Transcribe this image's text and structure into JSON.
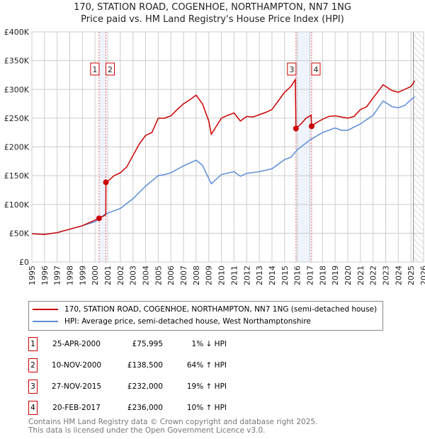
{
  "title_line1": "170, STATION ROAD, COGENHOE, NORTHAMPTON, NN7 1NG",
  "title_line2": "Price paid vs. HM Land Registry's House Price Index (HPI)",
  "chart_data": {
    "type": "line",
    "title": "170, STATION ROAD, COGENHOE, NORTHAMPTON, NN7 1NG — Price paid vs. HM Land Registry's House Price Index (HPI)",
    "xlim": [
      1995,
      2026
    ],
    "ylim": [
      0,
      400000
    ],
    "x_ticks": [
      "1995",
      "1996",
      "1997",
      "1998",
      "1999",
      "2000",
      "2001",
      "2002",
      "2003",
      "2004",
      "2005",
      "2006",
      "2007",
      "2008",
      "2009",
      "2010",
      "2011",
      "2012",
      "2013",
      "2014",
      "2015",
      "2016",
      "2017",
      "2018",
      "2019",
      "2020",
      "2021",
      "2022",
      "2023",
      "2024",
      "2025",
      "2026"
    ],
    "y_ticks": [
      {
        "v": 0,
        "l": "£0"
      },
      {
        "v": 50000,
        "l": "£50K"
      },
      {
        "v": 100000,
        "l": "£100K"
      },
      {
        "v": 150000,
        "l": "£150K"
      },
      {
        "v": 200000,
        "l": "£200K"
      },
      {
        "v": 250000,
        "l": "£250K"
      },
      {
        "v": 300000,
        "l": "£300K"
      },
      {
        "v": 350000,
        "l": "£350K"
      },
      {
        "v": 400000,
        "l": "£400K"
      }
    ],
    "grid": true,
    "shaded_ranges": [
      [
        2000.32,
        2000.86
      ],
      [
        2015.9,
        2017.14
      ]
    ],
    "forecast_hatch_from": 2025.2,
    "series": [
      {
        "name": "170, STATION ROAD, COGENHOE, NORTHAMPTON, NN7 1NG (semi-detached house)",
        "color": "#cc0000",
        "points": [
          [
            1995,
            49
          ],
          [
            1996,
            48
          ],
          [
            1997,
            51
          ],
          [
            1998,
            57
          ],
          [
            1999,
            63
          ],
          [
            2000.32,
            76
          ],
          [
            2000.85,
            82
          ],
          [
            2000.86,
            138.5
          ],
          [
            2001,
            140
          ],
          [
            2001.5,
            150
          ],
          [
            2002,
            155
          ],
          [
            2002.5,
            165
          ],
          [
            2003,
            185
          ],
          [
            2003.5,
            205
          ],
          [
            2004,
            220
          ],
          [
            2004.5,
            225
          ],
          [
            2005,
            250
          ],
          [
            2005.5,
            250
          ],
          [
            2006,
            254
          ],
          [
            2006.5,
            265
          ],
          [
            2007,
            275
          ],
          [
            2007.5,
            282
          ],
          [
            2008,
            290
          ],
          [
            2008.5,
            275
          ],
          [
            2009,
            245
          ],
          [
            2009.2,
            222
          ],
          [
            2010,
            250
          ],
          [
            2010.5,
            255
          ],
          [
            2011,
            259
          ],
          [
            2011.5,
            245
          ],
          [
            2012,
            253
          ],
          [
            2012.5,
            252
          ],
          [
            2013,
            256
          ],
          [
            2013.5,
            260
          ],
          [
            2014,
            265
          ],
          [
            2014.5,
            280
          ],
          [
            2015,
            295
          ],
          [
            2015.5,
            305
          ],
          [
            2015.85,
            317
          ],
          [
            2015.9,
            232
          ],
          [
            2016.3,
            240
          ],
          [
            2016.7,
            250
          ],
          [
            2017.1,
            255
          ],
          [
            2017.14,
            236
          ],
          [
            2017.5,
            242
          ],
          [
            2018,
            248
          ],
          [
            2018.5,
            253
          ],
          [
            2019,
            254
          ],
          [
            2019.5,
            252
          ],
          [
            2020,
            250
          ],
          [
            2020.5,
            253
          ],
          [
            2021,
            265
          ],
          [
            2021.5,
            270
          ],
          [
            2022,
            285
          ],
          [
            2022.8,
            308
          ],
          [
            2023.5,
            298
          ],
          [
            2024,
            295
          ],
          [
            2024.5,
            300
          ],
          [
            2025,
            305
          ],
          [
            2025.3,
            315
          ]
        ]
      },
      {
        "name": "HPI: Average price, semi-detached house, West Northamptonshire",
        "color": "#5b8dd6",
        "points": [
          [
            1995,
            49
          ],
          [
            1996,
            48
          ],
          [
            1997,
            51
          ],
          [
            1998,
            57
          ],
          [
            1999,
            63
          ],
          [
            2000,
            70
          ],
          [
            2000.8,
            83
          ],
          [
            2001,
            85
          ],
          [
            2002,
            93
          ],
          [
            2003,
            110
          ],
          [
            2004,
            132
          ],
          [
            2005,
            150
          ],
          [
            2005.5,
            152
          ],
          [
            2006,
            155
          ],
          [
            2007,
            167
          ],
          [
            2008,
            177
          ],
          [
            2008.5,
            168
          ],
          [
            2009.2,
            136
          ],
          [
            2010,
            152
          ],
          [
            2011,
            157
          ],
          [
            2011.5,
            149
          ],
          [
            2012,
            154
          ],
          [
            2013,
            157
          ],
          [
            2014,
            162
          ],
          [
            2015,
            178
          ],
          [
            2015.5,
            182
          ],
          [
            2016,
            195
          ],
          [
            2017,
            212
          ],
          [
            2018,
            225
          ],
          [
            2019,
            233
          ],
          [
            2019.5,
            229
          ],
          [
            2020,
            229
          ],
          [
            2021,
            240
          ],
          [
            2022,
            255
          ],
          [
            2022.8,
            280
          ],
          [
            2023.5,
            270
          ],
          [
            2024,
            268
          ],
          [
            2024.5,
            272
          ],
          [
            2025,
            282
          ],
          [
            2025.3,
            287
          ]
        ]
      }
    ],
    "sales": [
      {
        "n": "1",
        "x": 2000.32,
        "y": 75995
      },
      {
        "n": "2",
        "x": 2000.86,
        "y": 138500
      },
      {
        "n": "3",
        "x": 2015.9,
        "y": 232000
      },
      {
        "n": "4",
        "x": 2017.14,
        "y": 236000
      }
    ]
  },
  "legend": {
    "red": "170, STATION ROAD, COGENHOE, NORTHAMPTON, NN7 1NG (semi-detached house)",
    "blue": "HPI: Average price, semi-detached house, West Northamptonshire"
  },
  "rows": [
    {
      "n": "1",
      "date": "25-APR-2000",
      "price": "£75,995",
      "hpi": "1% ↓ HPI"
    },
    {
      "n": "2",
      "date": "10-NOV-2000",
      "price": "£138,500",
      "hpi": "64% ↑ HPI"
    },
    {
      "n": "3",
      "date": "27-NOV-2015",
      "price": "£232,000",
      "hpi": "19% ↑ HPI"
    },
    {
      "n": "4",
      "date": "20-FEB-2017",
      "price": "£236,000",
      "hpi": "10% ↑ HPI"
    }
  ],
  "footer1": "Contains HM Land Registry data © Crown copyright and database right 2025.",
  "footer2": "This data is licensed under the Open Government Licence v3.0."
}
